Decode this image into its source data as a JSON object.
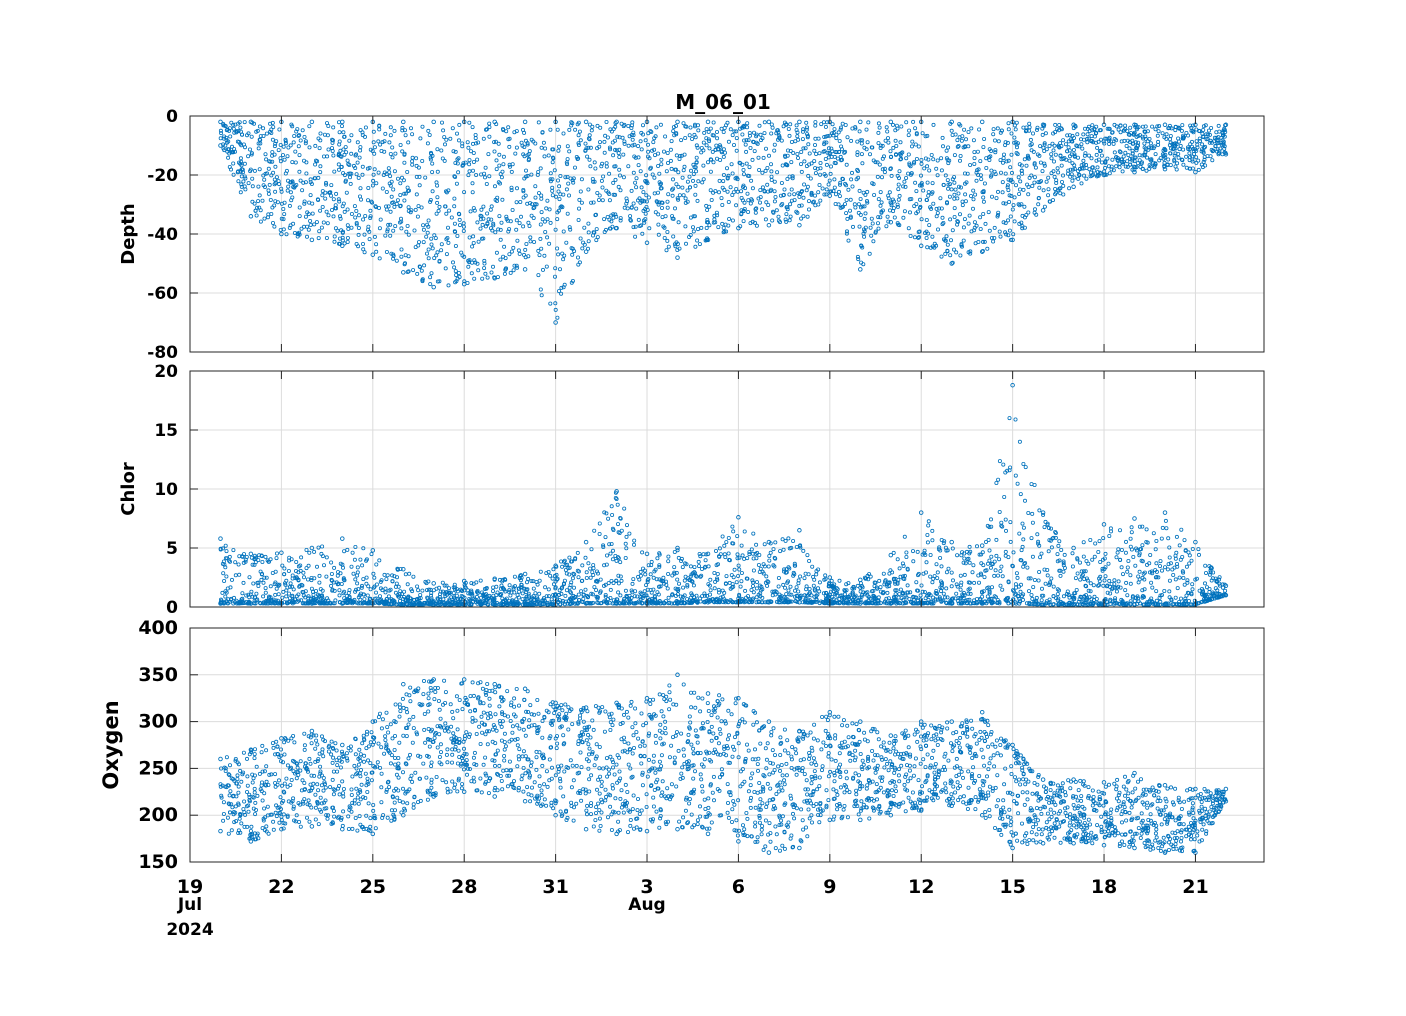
{
  "title": "M_06_01",
  "colors": {
    "series": "#0072BD",
    "grid": "#dcdcdc",
    "axis": "#262626"
  },
  "chart_data": [
    {
      "type": "scatter",
      "ylabel": "Depth",
      "ylim": [
        -80,
        0
      ],
      "yticks": [
        0,
        -20,
        -40,
        -60,
        -80
      ],
      "yticklabels": [
        "0",
        "-20",
        "-40",
        "-60",
        "-80"
      ],
      "show_x_ticklabels": false,
      "grid": true,
      "series": [
        {
          "x": [
            "2024-07-20",
            "2024-07-21",
            "2024-07-22",
            "2024-07-23",
            "2024-07-24",
            "2024-07-25",
            "2024-07-26",
            "2024-07-27",
            "2024-07-28",
            "2024-07-29",
            "2024-07-30",
            "2024-07-31",
            "2024-08-01",
            "2024-08-02",
            "2024-08-03",
            "2024-08-04",
            "2024-08-05",
            "2024-08-06",
            "2024-08-07",
            "2024-08-08",
            "2024-08-09",
            "2024-08-10",
            "2024-08-11",
            "2024-08-12",
            "2024-08-13",
            "2024-08-14",
            "2024-08-15",
            "2024-08-16",
            "2024-08-17",
            "2024-08-18",
            "2024-08-19",
            "2024-08-20",
            "2024-08-21",
            "2024-08-22"
          ],
          "y_min": [
            -10,
            -34,
            -40,
            -42,
            -44,
            -47,
            -53,
            -58,
            -57,
            -55,
            -52,
            -70,
            -46,
            -38,
            -43,
            -48,
            -42,
            -38,
            -37,
            -37,
            -27,
            -52,
            -36,
            -44,
            -50,
            -46,
            -42,
            -32,
            -24,
            -20,
            -19,
            -18,
            -19,
            -13
          ],
          "y_max": [
            -2,
            -2,
            -2,
            -2,
            -2,
            -2,
            -2,
            -2,
            -2,
            -2,
            -2,
            -2,
            -2,
            -2,
            -2,
            -2,
            -2,
            -2,
            -2,
            -2,
            -2,
            -2,
            -2,
            -2,
            -2,
            -2,
            -2,
            -3,
            -3,
            -3,
            -3,
            -3,
            -3,
            -3
          ]
        }
      ]
    },
    {
      "type": "scatter",
      "ylabel": "Chlor",
      "ylim": [
        0,
        20
      ],
      "yticks": [
        0,
        5,
        10,
        15,
        20
      ],
      "yticklabels": [
        "0",
        "5",
        "10",
        "15",
        "20"
      ],
      "show_x_ticklabels": false,
      "grid": true,
      "series": [
        {
          "x": [
            "2024-07-20",
            "2024-07-21",
            "2024-07-22",
            "2024-07-23",
            "2024-07-24",
            "2024-07-25",
            "2024-07-26",
            "2024-07-27",
            "2024-07-28",
            "2024-07-29",
            "2024-07-30",
            "2024-07-31",
            "2024-08-01",
            "2024-08-02",
            "2024-08-03",
            "2024-08-04",
            "2024-08-05",
            "2024-08-06",
            "2024-08-07",
            "2024-08-08",
            "2024-08-09",
            "2024-08-10",
            "2024-08-11",
            "2024-08-12",
            "2024-08-13",
            "2024-08-14",
            "2024-08-15",
            "2024-08-16",
            "2024-08-17",
            "2024-08-18",
            "2024-08-19",
            "2024-08-20",
            "2024-08-21",
            "2024-08-22"
          ],
          "y_min": [
            0.3,
            0.3,
            0.3,
            0.3,
            0.3,
            0.3,
            0.2,
            0.2,
            0.2,
            0.2,
            0.2,
            0.2,
            0.3,
            0.3,
            0.3,
            0.3,
            0.4,
            0.4,
            0.4,
            0.4,
            0.3,
            0.3,
            0.3,
            0.3,
            0.3,
            0.3,
            0.3,
            0.2,
            0.2,
            0.2,
            0.2,
            0.2,
            0.2,
            1.0
          ],
          "y_max": [
            5.8,
            4.5,
            4.6,
            5.0,
            5.8,
            4.8,
            3.2,
            2.0,
            2.2,
            2.4,
            2.8,
            3.5,
            5.5,
            9.8,
            4.5,
            5.0,
            4.5,
            7.6,
            5.5,
            6.5,
            2.5,
            2.3,
            4.4,
            8.0,
            5.5,
            5.2,
            18.8,
            8.0,
            5.0,
            7.0,
            7.5,
            8.0,
            5.5,
            1.8
          ]
        }
      ]
    },
    {
      "type": "scatter",
      "ylabel": "Oxygen",
      "ylim": [
        150,
        400
      ],
      "yticks": [
        150,
        200,
        250,
        300,
        350,
        400
      ],
      "yticklabels": [
        "150",
        "200",
        "250",
        "300",
        "350",
        "400"
      ],
      "show_x_ticklabels": true,
      "grid": true,
      "series": [
        {
          "x": [
            "2024-07-20",
            "2024-07-21",
            "2024-07-22",
            "2024-07-23",
            "2024-07-24",
            "2024-07-25",
            "2024-07-26",
            "2024-07-27",
            "2024-07-28",
            "2024-07-29",
            "2024-07-30",
            "2024-07-31",
            "2024-08-01",
            "2024-08-02",
            "2024-08-03",
            "2024-08-04",
            "2024-08-05",
            "2024-08-06",
            "2024-08-07",
            "2024-08-08",
            "2024-08-09",
            "2024-08-10",
            "2024-08-11",
            "2024-08-12",
            "2024-08-13",
            "2024-08-14",
            "2024-08-15",
            "2024-08-16",
            "2024-08-17",
            "2024-08-18",
            "2024-08-19",
            "2024-08-20",
            "2024-08-21",
            "2024-08-22"
          ],
          "y_min": [
            183,
            172,
            185,
            188,
            185,
            180,
            200,
            220,
            225,
            220,
            215,
            200,
            185,
            180,
            183,
            185,
            180,
            172,
            160,
            165,
            195,
            195,
            200,
            205,
            210,
            200,
            165,
            170,
            170,
            168,
            165,
            160,
            160,
            215
          ],
          "y_max": [
            260,
            270,
            282,
            290,
            275,
            300,
            340,
            345,
            345,
            340,
            335,
            320,
            315,
            320,
            325,
            350,
            330,
            325,
            300,
            290,
            310,
            300,
            285,
            300,
            300,
            310,
            275,
            238,
            238,
            235,
            245,
            232,
            228,
            228
          ]
        }
      ]
    }
  ],
  "x_axis": {
    "type": "date",
    "xlim": [
      "2024-07-19T00:00",
      "2024-08-23T06:00"
    ],
    "ticks": [
      {
        "date": "2024-07-19",
        "label": "19"
      },
      {
        "date": "2024-07-22",
        "label": "22"
      },
      {
        "date": "2024-07-25",
        "label": "25"
      },
      {
        "date": "2024-07-28",
        "label": "28"
      },
      {
        "date": "2024-07-31",
        "label": "31"
      },
      {
        "date": "2024-08-03",
        "label": "3"
      },
      {
        "date": "2024-08-06",
        "label": "6"
      },
      {
        "date": "2024-08-09",
        "label": "9"
      },
      {
        "date": "2024-08-12",
        "label": "12"
      },
      {
        "date": "2024-08-15",
        "label": "15"
      },
      {
        "date": "2024-08-18",
        "label": "18"
      },
      {
        "date": "2024-08-21",
        "label": "21"
      }
    ],
    "month_labels": [
      {
        "date": "2024-07-19",
        "label": "Jul"
      },
      {
        "date": "2024-08-03",
        "label": "Aug"
      }
    ],
    "year_label": "2024"
  }
}
